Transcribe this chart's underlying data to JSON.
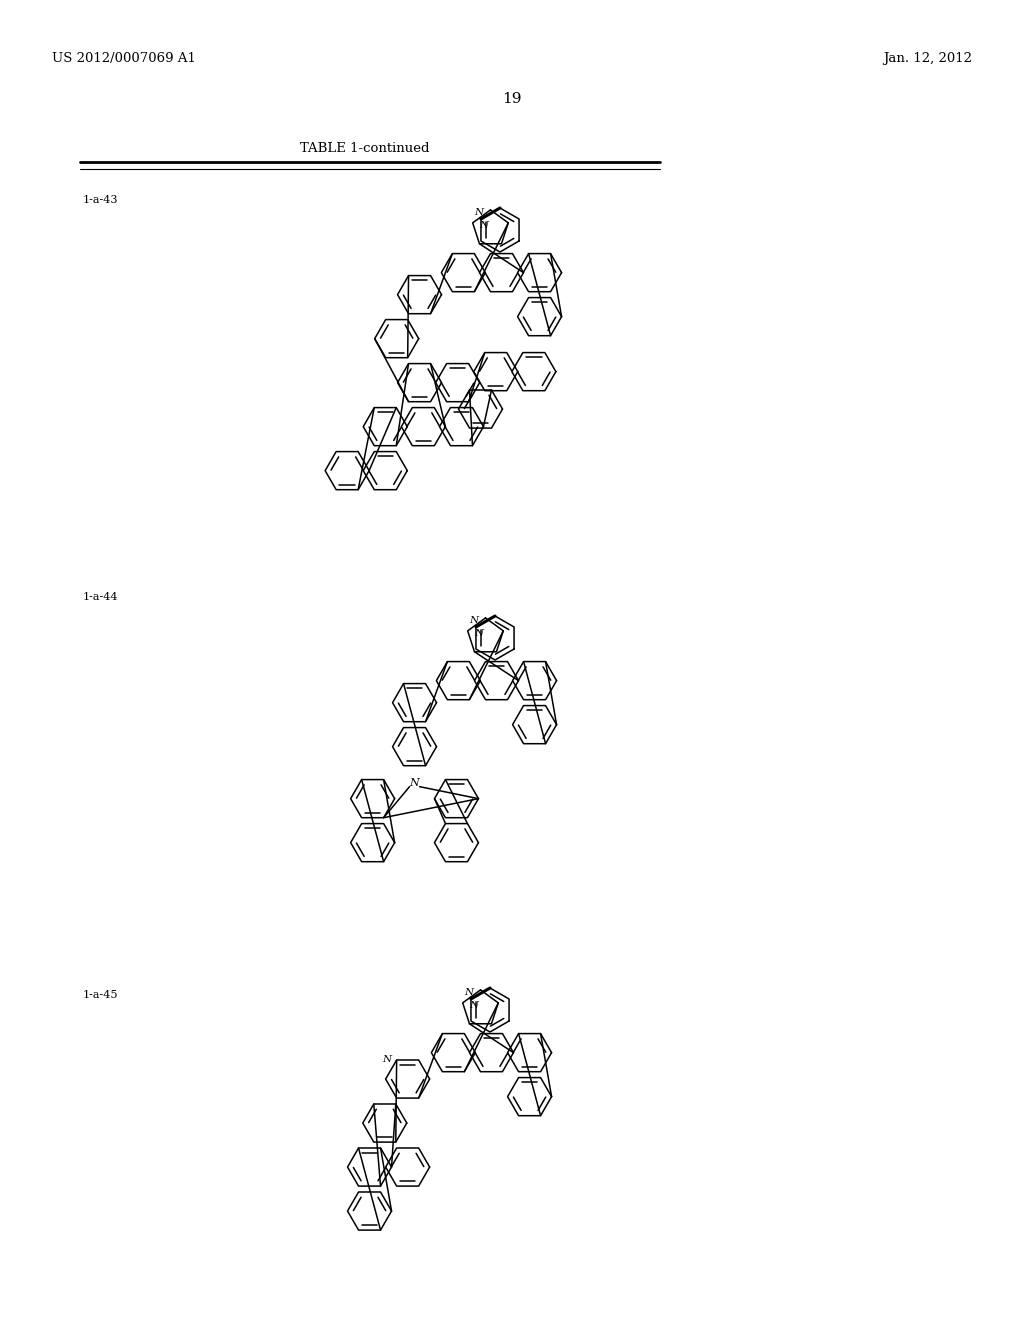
{
  "page_number": "19",
  "header_left": "US 2012/0007069 A1",
  "header_right": "Jan. 12, 2012",
  "table_title": "TABLE 1-continued",
  "label_43": "1-a-43",
  "label_44": "1-a-44",
  "label_45": "1-a-45",
  "bg": "#ffffff"
}
